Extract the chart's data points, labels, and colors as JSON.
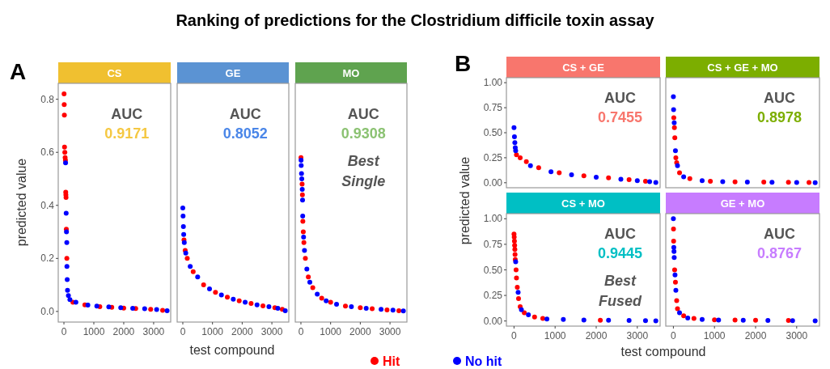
{
  "chart_data": [
    {
      "type": "scatter",
      "title": "CS",
      "xlabel": null,
      "ylabel": "predicted value",
      "annotations": [
        "Ranking of predictions for the Clostridium difficile toxin assay",
        "A",
        "AUC",
        "0.9171"
      ],
      "legend": "bottom",
      "marker": "circle",
      "xlim": [
        -190,
        3570
      ],
      "ylim": [
        -0.04,
        0.86
      ],
      "xticks": [
        0,
        1000,
        2000,
        3000
      ],
      "yticks": [
        {
          "value": 0,
          "label": "0.0"
        },
        0.2,
        0.4,
        0.6,
        0.8
      ],
      "series": [
        {
          "name": "Hit",
          "color": "#ff0000",
          "x": [
            5,
            10,
            15,
            20,
            30,
            40,
            50,
            60,
            65,
            70,
            80,
            97,
            300,
            700,
            1200,
            1600,
            2000,
            2400,
            2900,
            3300
          ],
          "values": [
            0.82,
            0.78,
            0.74,
            0.62,
            0.6,
            0.58,
            0.57,
            0.45,
            0.44,
            0.43,
            0.31,
            0.2,
            0.035,
            0.025,
            0.018,
            0.016,
            0.013,
            0.011,
            0.008,
            0.004
          ]
        },
        {
          "name": "No hit",
          "color": "#0000ff",
          "x": [
            55,
            75,
            85,
            95,
            100,
            110,
            120,
            150,
            200,
            400,
            800,
            1100,
            1500,
            1900,
            2300,
            2700,
            3100,
            3450
          ],
          "values": [
            0.56,
            0.37,
            0.3,
            0.26,
            0.17,
            0.12,
            0.08,
            0.06,
            0.045,
            0.035,
            0.024,
            0.02,
            0.017,
            0.014,
            0.012,
            0.01,
            0.007,
            0.003
          ]
        }
      ]
    },
    {
      "type": "scatter",
      "title": "GE",
      "xlabel": "test compound",
      "annotations": [
        "AUC",
        "0.8052"
      ],
      "marker": "circle",
      "tick_labels": "x",
      "xlim": [
        -190,
        3570
      ],
      "ylim": [
        -0.04,
        0.86
      ],
      "xticks": [
        0,
        1000,
        2000,
        3000
      ],
      "series": [
        {
          "color": "#ff0000",
          "x": [
            40,
            80,
            150,
            350,
            700,
            1100,
            1500,
            1900,
            2300,
            2700,
            3100,
            3350
          ],
          "values": [
            0.27,
            0.23,
            0.2,
            0.15,
            0.1,
            0.072,
            0.054,
            0.04,
            0.03,
            0.021,
            0.014,
            0.008
          ]
        },
        {
          "color": "#0000ff",
          "x": [
            0,
            10,
            20,
            30,
            50,
            100,
            250,
            500,
            900,
            1300,
            1700,
            2100,
            2500,
            2900,
            3200,
            3450
          ],
          "values": [
            0.39,
            0.36,
            0.32,
            0.29,
            0.26,
            0.22,
            0.17,
            0.13,
            0.085,
            0.062,
            0.046,
            0.035,
            0.025,
            0.018,
            0.012,
            0.003
          ]
        }
      ]
    },
    {
      "type": "scatter",
      "title": "MO",
      "annotations": [
        "AUC",
        "0.9308",
        "Best Single"
      ],
      "marker": "circle",
      "tick_labels": "x",
      "xlim": [
        -190,
        3570
      ],
      "ylim": [
        -0.04,
        0.86
      ],
      "xticks": [
        0,
        1000,
        2000,
        3000
      ],
      "series": [
        {
          "color": "#ff0000",
          "x": [
            2,
            40,
            50,
            65,
            80,
            100,
            150,
            250,
            400,
            700,
            1000,
            1500,
            2000,
            2400,
            2900,
            3300
          ],
          "values": [
            0.58,
            0.48,
            0.44,
            0.34,
            0.3,
            0.26,
            0.2,
            0.13,
            0.09,
            0.05,
            0.035,
            0.02,
            0.014,
            0.01,
            0.006,
            0.003
          ]
        },
        {
          "color": "#0000ff",
          "x": [
            5,
            10,
            20,
            30,
            45,
            55,
            60,
            90,
            120,
            200,
            300,
            550,
            850,
            1200,
            1700,
            2200,
            2700,
            3100,
            3450
          ],
          "values": [
            0.57,
            0.55,
            0.52,
            0.5,
            0.46,
            0.42,
            0.36,
            0.28,
            0.23,
            0.16,
            0.11,
            0.065,
            0.04,
            0.027,
            0.018,
            0.012,
            0.008,
            0.005,
            0.002
          ]
        }
      ]
    },
    {
      "type": "scatter",
      "title": "CS + GE",
      "ylabel": "predicted value",
      "annotations": [
        "B",
        "AUC",
        "0.7455"
      ],
      "marker": "circle",
      "tick_labels": "y",
      "xlim": [
        -185,
        3555
      ],
      "ylim": [
        -0.05,
        1.05
      ],
      "yticks": [
        {
          "value": 0,
          "label": "0.00"
        },
        0.25,
        {
          "value": 0.5,
          "label": "0.50"
        },
        0.75,
        {
          "value": 1,
          "label": "1.00"
        }
      ],
      "series": [
        {
          "color": "#ff0000",
          "x": [
            60,
            150,
            300,
            600,
            1100,
            1700,
            2300,
            2800,
            3200
          ],
          "values": [
            0.28,
            0.25,
            0.21,
            0.15,
            0.1,
            0.07,
            0.05,
            0.03,
            0.015
          ]
        },
        {
          "color": "#0000ff",
          "x": [
            0,
            10,
            20,
            30,
            40,
            400,
            900,
            1400,
            2000,
            2600,
            3000,
            3300,
            3450
          ],
          "values": [
            0.55,
            0.46,
            0.4,
            0.35,
            0.32,
            0.17,
            0.11,
            0.08,
            0.055,
            0.035,
            0.02,
            0.01,
            0.003
          ]
        }
      ]
    },
    {
      "type": "scatter",
      "title": "CS + GE + MO",
      "annotations": [
        "AUC",
        "0.8978"
      ],
      "marker": "circle",
      "tick_labels": false,
      "xlim": [
        -185,
        3555
      ],
      "ylim": [
        -0.05,
        1.05
      ],
      "series": [
        {
          "color": "#ff0000",
          "x": [
            10,
            25,
            35,
            60,
            80,
            150,
            400,
            900,
            1500,
            2200,
            2800,
            3300
          ],
          "values": [
            0.65,
            0.55,
            0.45,
            0.25,
            0.2,
            0.1,
            0.04,
            0.015,
            0.009,
            0.006,
            0.004,
            0.002
          ]
        },
        {
          "color": "#0000ff",
          "x": [
            0,
            5,
            20,
            50,
            100,
            250,
            700,
            1200,
            1800,
            2400,
            3000,
            3450
          ],
          "values": [
            0.86,
            0.73,
            0.6,
            0.32,
            0.17,
            0.06,
            0.02,
            0.01,
            0.007,
            0.005,
            0.003,
            0.001
          ]
        }
      ]
    },
    {
      "type": "scatter",
      "title": "CS + MO",
      "xlabel": "test compound",
      "annotations": [
        "AUC",
        "0.9445",
        "Best Fused"
      ],
      "marker": "circle",
      "xlim": [
        -185,
        3555
      ],
      "ylim": [
        -0.05,
        1.05
      ],
      "xticks": [
        0,
        1000,
        2000,
        3000
      ],
      "yticks": [
        {
          "value": 0,
          "label": "0.00"
        },
        0.25,
        {
          "value": 0.5,
          "label": "0.50"
        },
        0.75,
        {
          "value": 1,
          "label": "1.00"
        }
      ],
      "series": [
        {
          "color": "#ff0000",
          "x": [
            0,
            5,
            10,
            15,
            20,
            25,
            30,
            50,
            60,
            80,
            110,
            150,
            250,
            500,
            700,
            2100
          ],
          "values": [
            0.85,
            0.82,
            0.78,
            0.74,
            0.7,
            0.65,
            0.6,
            0.5,
            0.42,
            0.33,
            0.22,
            0.14,
            0.08,
            0.04,
            0.025,
            0.008
          ]
        },
        {
          "color": "#0000ff",
          "x": [
            40,
            100,
            180,
            350,
            800,
            1200,
            1700,
            2300,
            2800,
            3200,
            3450
          ],
          "values": [
            0.58,
            0.28,
            0.11,
            0.06,
            0.02,
            0.015,
            0.01,
            0.007,
            0.005,
            0.003,
            0.002
          ]
        }
      ]
    },
    {
      "type": "scatter",
      "title": "GE + MO",
      "annotations": [
        "AUC",
        "0.8767"
      ],
      "marker": "circle",
      "tick_labels": "x",
      "xlim": [
        -185,
        3555
      ],
      "ylim": [
        -0.05,
        1.05
      ],
      "xticks": [
        0,
        1000,
        2000,
        3000
      ],
      "series": [
        {
          "color": "#ff0000",
          "x": [
            3,
            6,
            30,
            50,
            80,
            100,
            250,
            500,
            1000,
            1500,
            2000,
            2800
          ],
          "values": [
            0.9,
            0.78,
            0.5,
            0.38,
            0.2,
            0.12,
            0.05,
            0.025,
            0.012,
            0.009,
            0.007,
            0.005
          ]
        },
        {
          "color": "#0000ff",
          "x": [
            0,
            10,
            15,
            20,
            40,
            60,
            150,
            350,
            700,
            1100,
            1700,
            2300,
            2900,
            3450
          ],
          "values": [
            1.0,
            0.72,
            0.68,
            0.62,
            0.45,
            0.3,
            0.08,
            0.03,
            0.015,
            0.01,
            0.008,
            0.006,
            0.004,
            0.002
          ]
        }
      ]
    }
  ]
}
